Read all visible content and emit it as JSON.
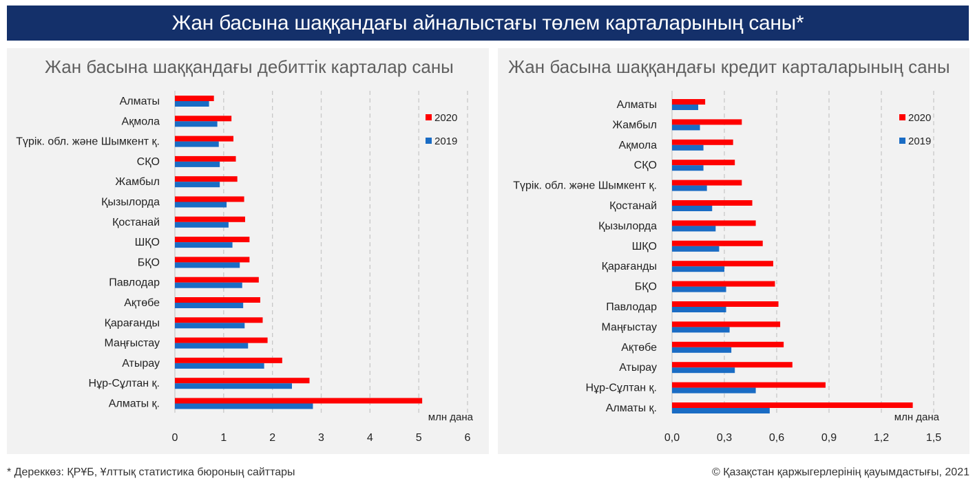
{
  "header": {
    "title": "Жан басына шаққандағы айналыстағы төлем карталарының саны*"
  },
  "footer": {
    "source": "* Дереккөз: ҚРҰБ, Ұлттық статистика бюроның сайттары",
    "copyright": "© Қазақстан қаржыгерлерінің қауымдастығы, 2021"
  },
  "colors": {
    "s2020": "#ff0000",
    "s2019": "#1a6cc4",
    "grid": "#c8c8c8"
  },
  "chart_data": [
    {
      "type": "bar",
      "orientation": "horizontal",
      "title": "Жан басына шаққандағы дебиттік карталар саны",
      "unit": "млн дана",
      "categories": [
        "Алматы",
        "Ақмола",
        "Түрік. обл. және Шымкент қ.",
        "СҚО",
        "Жамбыл",
        "Қызылорда",
        "Қостанай",
        "ШҚО",
        "БҚО",
        "Павлодар",
        "Ақтөбе",
        "Қарағанды",
        "Маңғыстау",
        "Атырау",
        "Нұр-Сұлтан қ.",
        "Алматы қ."
      ],
      "series": [
        {
          "name": "2020",
          "values": [
            0.8,
            1.16,
            1.2,
            1.25,
            1.28,
            1.42,
            1.44,
            1.53,
            1.53,
            1.72,
            1.75,
            1.8,
            1.9,
            2.2,
            2.76,
            5.07
          ]
        },
        {
          "name": "2019",
          "values": [
            0.7,
            0.87,
            0.9,
            0.92,
            0.92,
            1.06,
            1.1,
            1.18,
            1.33,
            1.38,
            1.4,
            1.43,
            1.5,
            1.83,
            2.4,
            2.83
          ]
        }
      ],
      "xlim": [
        0,
        6
      ],
      "ticks": [
        "0",
        "1",
        "2",
        "3",
        "4",
        "5",
        "6"
      ],
      "legend": [
        "2020",
        "2019"
      ],
      "legend_position": "top-right"
    },
    {
      "type": "bar",
      "orientation": "horizontal",
      "title": "Жан басына шаққандағы кредит карталарының саны",
      "unit": "млн дана",
      "categories": [
        "Алматы",
        "Жамбыл",
        "Ақмола",
        "СҚО",
        "Түрік. обл. және Шымкент қ.",
        "Қостанай",
        "Қызылорда",
        "ШҚО",
        "Қарағанды",
        "БҚО",
        "Павлодар",
        "Маңғыстау",
        "Ақтөбе",
        "Атырау",
        "Нұр-Сұлтан қ.",
        "Алматы қ."
      ],
      "series": [
        {
          "name": "2020",
          "values": [
            0.19,
            0.4,
            0.35,
            0.36,
            0.4,
            0.46,
            0.48,
            0.52,
            0.58,
            0.59,
            0.61,
            0.62,
            0.64,
            0.69,
            0.88,
            1.38
          ]
        },
        {
          "name": "2019",
          "values": [
            0.15,
            0.16,
            0.18,
            0.18,
            0.2,
            0.23,
            0.25,
            0.27,
            0.3,
            0.31,
            0.31,
            0.33,
            0.34,
            0.36,
            0.48,
            0.56
          ]
        }
      ],
      "xlim": [
        0,
        1.5
      ],
      "ticks": [
        "0,0",
        "0,3",
        "0,6",
        "0,9",
        "1,2",
        "1,5"
      ],
      "legend": [
        "2020",
        "2019"
      ],
      "legend_position": "top-right"
    }
  ]
}
